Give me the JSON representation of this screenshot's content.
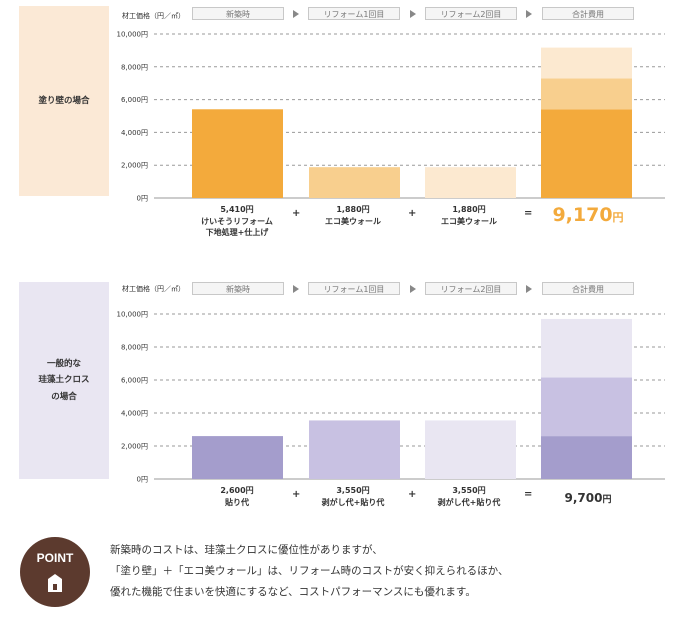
{
  "panels": [
    {
      "side_label": [
        "塗り壁の場合"
      ],
      "unit_label": "材工価格（円／㎡）",
      "stages": [
        "新築時",
        "リフォーム1回目",
        "リフォーム2回目",
        "合計費用"
      ],
      "captions": [
        [
          "5,410円",
          "けいそうリフォーム",
          "下地処理+仕上げ"
        ],
        [
          "1,880円",
          "エコ美ウォール"
        ],
        [
          "1,880円",
          "エコ美ウォール"
        ]
      ],
      "total_text": "9,170",
      "total_unit": "円",
      "colors": {
        "side_bg": "#fbe9d6",
        "new": "#f3aa3c",
        "reform1": "#f8cf8e",
        "reform2": "#fce9d0",
        "total_color": "#f3aa3c"
      }
    },
    {
      "side_label": [
        "一般的な",
        "珪藻土クロス",
        "の場合"
      ],
      "unit_label": "材工価格（円／㎡）",
      "stages": [
        "新築時",
        "リフォーム1回目",
        "リフォーム2回目",
        "合計費用"
      ],
      "captions": [
        [
          "2,600円",
          "貼り代"
        ],
        [
          "3,550円",
          "剥がし代+貼り代"
        ],
        [
          "3,550円",
          "剥がし代+貼り代"
        ]
      ],
      "total_text": "9,700",
      "total_unit": "円",
      "colors": {
        "side_bg": "#e9e6f2",
        "new": "#a49dcc",
        "reform1": "#c8c1e2",
        "reform2": "#e9e6f2",
        "total_color": "#333333"
      }
    }
  ],
  "operators": [
    "+",
    "+",
    "="
  ],
  "point": {
    "label": "POINT",
    "lines": [
      "新築時のコストは、珪藻土クロスに優位性がありますが、",
      "「塗り壁」＋「エコ美ウォール」は、リフォーム時のコストが安く抑えられるほか、",
      "優れた機能で住まいを快適にするなど、コストパフォーマンスにも優れます。"
    ]
  },
  "chart_data": [
    {
      "type": "bar",
      "title": "塗り壁の場合",
      "ylabel": "材工価格（円／㎡）",
      "ylim": [
        0,
        10000
      ],
      "yticks": [
        "0円",
        "2,000円",
        "4,000円",
        "6,000円",
        "8,000円",
        "10,000円"
      ],
      "grid": true,
      "categories": [
        "新築時",
        "リフォーム1回目",
        "リフォーム2回目",
        "合計費用"
      ],
      "series": [
        {
          "name": "新築時",
          "values": [
            5410,
            0,
            0,
            5410
          ]
        },
        {
          "name": "リフォーム1回目",
          "values": [
            0,
            1880,
            0,
            1880
          ]
        },
        {
          "name": "リフォーム2回目",
          "values": [
            0,
            0,
            1880,
            1880
          ]
        }
      ]
    },
    {
      "type": "bar",
      "title": "一般的な珪藻土クロスの場合",
      "ylabel": "材工価格（円／㎡）",
      "ylim": [
        0,
        10000
      ],
      "yticks": [
        "0円",
        "2,000円",
        "4,000円",
        "6,000円",
        "8,000円",
        "10,000円"
      ],
      "grid": true,
      "categories": [
        "新築時",
        "リフォーム1回目",
        "リフォーム2回目",
        "合計費用"
      ],
      "series": [
        {
          "name": "新築時",
          "values": [
            2600,
            0,
            0,
            2600
          ]
        },
        {
          "name": "リフォーム1回目",
          "values": [
            0,
            3550,
            0,
            3550
          ]
        },
        {
          "name": "リフォーム2回目",
          "values": [
            0,
            0,
            3550,
            3550
          ]
        }
      ]
    }
  ]
}
